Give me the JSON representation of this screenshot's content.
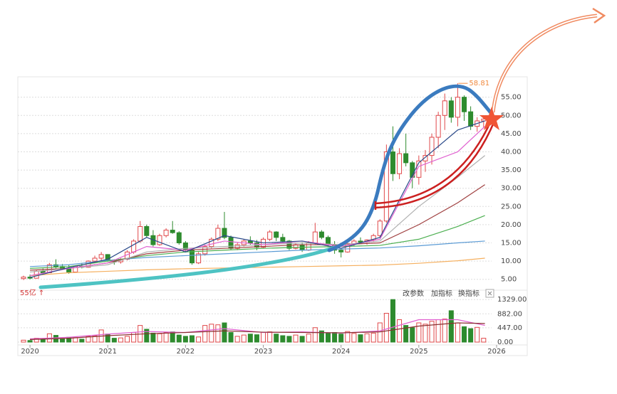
{
  "chart_data": [
    {
      "type": "candlestick",
      "categories": [
        null,
        "2020",
        null,
        null,
        null,
        null,
        null,
        null,
        null,
        null,
        null,
        null,
        null,
        "2021",
        null,
        null,
        null,
        null,
        null,
        null,
        null,
        null,
        null,
        null,
        null,
        "2022",
        null,
        null,
        null,
        null,
        null,
        null,
        null,
        null,
        null,
        null,
        null,
        "2023",
        null,
        null,
        null,
        null,
        null,
        null,
        null,
        null,
        null,
        null,
        null,
        "2024",
        null,
        null,
        null,
        null,
        null,
        null,
        null,
        null,
        null,
        null,
        null,
        "2025",
        null,
        null,
        null,
        null,
        null,
        null,
        null,
        null,
        null,
        null,
        null,
        "2026"
      ],
      "open": [
        5.2,
        5.6,
        5.3,
        7.2,
        6.8,
        9.0,
        8.5,
        8.0,
        7.0,
        8.6,
        8.3,
        10.0,
        10.8,
        11.8,
        10.2,
        9.8,
        10.5,
        12.5,
        15.5,
        19.5,
        17.0,
        14.5,
        17.0,
        18.5,
        17.8,
        15.0,
        13.0,
        9.5,
        12.0,
        14.0,
        16.0,
        19.0,
        16.5,
        13.5,
        14.5,
        15.5,
        15.0,
        13.8,
        16.0,
        18.0,
        16.5,
        15.5,
        13.5,
        14.5,
        13.0,
        15.0,
        18.0,
        16.5,
        14.5,
        13.0,
        12.5,
        14.8,
        15.5,
        15.2,
        15.8,
        17.0,
        21.0,
        40.0,
        34.0,
        39.5,
        37.0,
        33.0,
        37.5,
        39.0,
        44.0,
        50.0,
        54.0,
        49.5,
        55.0,
        51.0,
        47.0,
        48.5,
        null,
        null
      ],
      "high": [
        6.0,
        6.3,
        7.5,
        8.0,
        9.5,
        10.5,
        9.2,
        9.0,
        8.8,
        9.5,
        10.2,
        11.5,
        12.5,
        11.9,
        10.5,
        10.8,
        13.0,
        16.0,
        21.0,
        20.0,
        18.5,
        17.5,
        19.0,
        21.0,
        18.2,
        15.5,
        13.5,
        12.5,
        14.5,
        16.5,
        20.0,
        23.5,
        17.0,
        15.0,
        16.0,
        16.8,
        15.8,
        16.5,
        18.5,
        18.2,
        17.5,
        15.8,
        15.0,
        15.2,
        15.5,
        20.5,
        18.5,
        17.0,
        15.5,
        13.5,
        15.0,
        16.0,
        16.5,
        16.0,
        17.5,
        21.5,
        42.0,
        47.0,
        41.0,
        45.0,
        37.5,
        39.0,
        40.5,
        45.0,
        51.0,
        56.0,
        55.0,
        58.81,
        55.5,
        52.5,
        49.5,
        50.0,
        null,
        null
      ],
      "low": [
        4.8,
        5.0,
        5.2,
        6.5,
        6.7,
        8.0,
        7.8,
        6.5,
        6.8,
        8.0,
        8.2,
        9.5,
        10.0,
        9.8,
        9.0,
        9.3,
        10.2,
        12.0,
        15.0,
        16.5,
        14.0,
        14.2,
        16.5,
        17.5,
        14.5,
        12.5,
        9.0,
        9.2,
        11.5,
        13.5,
        15.5,
        16.0,
        13.0,
        13.0,
        14.0,
        14.5,
        13.0,
        13.5,
        15.5,
        15.5,
        15.0,
        13.0,
        13.2,
        12.5,
        12.8,
        14.5,
        16.0,
        14.0,
        12.0,
        11.0,
        12.3,
        14.0,
        14.8,
        14.5,
        15.2,
        16.5,
        20.5,
        32.0,
        32.5,
        36.0,
        30.0,
        31.0,
        34.5,
        36.5,
        41.0,
        46.0,
        48.0,
        47.0,
        48.5,
        46.0,
        45.5,
        46.5,
        null,
        null
      ],
      "close": [
        5.6,
        5.3,
        7.2,
        6.8,
        9.0,
        8.5,
        8.0,
        7.0,
        8.6,
        8.3,
        10.0,
        10.8,
        11.8,
        10.2,
        9.8,
        10.5,
        12.5,
        15.5,
        19.5,
        17.0,
        14.5,
        17.0,
        18.5,
        17.8,
        15.0,
        13.0,
        9.5,
        12.0,
        14.0,
        16.0,
        19.0,
        16.5,
        13.5,
        14.5,
        15.5,
        15.0,
        13.8,
        16.0,
        18.0,
        16.5,
        15.5,
        13.5,
        14.5,
        13.0,
        15.0,
        18.0,
        16.5,
        14.5,
        13.0,
        12.5,
        14.8,
        15.5,
        15.2,
        15.8,
        17.0,
        21.0,
        40.0,
        34.0,
        39.5,
        37.0,
        33.0,
        37.5,
        39.0,
        44.0,
        50.0,
        54.0,
        49.5,
        55.0,
        51.0,
        47.0,
        48.5,
        49.0,
        null,
        null
      ],
      "volume": [
        60,
        50,
        120,
        90,
        260,
        210,
        110,
        150,
        140,
        90,
        180,
        200,
        380,
        250,
        120,
        130,
        180,
        300,
        520,
        400,
        280,
        260,
        300,
        320,
        220,
        180,
        200,
        160,
        520,
        560,
        540,
        600,
        300,
        180,
        220,
        250,
        230,
        300,
        320,
        250,
        200,
        180,
        220,
        180,
        250,
        450,
        350,
        280,
        300,
        250,
        330,
        270,
        230,
        260,
        280,
        600,
        900,
        1329,
        700,
        520,
        450,
        600,
        560,
        650,
        700,
        720,
        980,
        600,
        480,
        420,
        460,
        120,
        null,
        null
      ],
      "ylim": [
        2.6,
        60.6
      ],
      "yticks": [
        {
          "value": 5,
          "label": "5.00"
        },
        {
          "value": 10,
          "label": "10.00"
        },
        {
          "value": 15,
          "label": "15.00"
        },
        {
          "value": 20,
          "label": "20.00"
        },
        {
          "value": 25,
          "label": "25.00"
        },
        {
          "value": 30,
          "label": "30.00"
        },
        {
          "value": 35,
          "label": "35.00"
        },
        {
          "value": 40,
          "label": "40.00"
        },
        {
          "value": 45,
          "label": "45.00"
        },
        {
          "value": 50,
          "label": "50.00"
        },
        {
          "value": 55,
          "label": "55.00"
        }
      ],
      "volume_ylim": [
        0,
        1400
      ],
      "volume_yticks": [
        {
          "value": 0,
          "label": "0.00"
        },
        {
          "value": 447,
          "label": "447.00"
        },
        {
          "value": 882,
          "label": "882.00"
        },
        {
          "value": 1329,
          "label": "1329.00"
        }
      ],
      "up_color": "#e0484a",
      "down_color": "#2e8b2e",
      "max_label": "58.81",
      "volume_unit": "55亿 ↑",
      "buttons": [
        "改参数",
        "加指标",
        "换指标"
      ]
    },
    {
      "type": "line",
      "xlim": [
        2019.917,
        2026.0
      ],
      "x": [
        2020,
        2020.5,
        2021,
        2021.5,
        2022,
        2022.5,
        2023,
        2023.5,
        2024,
        2024.5,
        2025,
        2025.5,
        2025.85
      ],
      "series": [
        {
          "color": "#f5b060",
          "values": [
            6.0,
            6.8,
            7.2,
            7.6,
            7.9,
            8.1,
            8.3,
            8.5,
            8.7,
            8.9,
            9.4,
            10.1,
            10.8
          ]
        },
        {
          "color": "#5b9bd5",
          "values": [
            8.5,
            9.0,
            10.2,
            11.0,
            11.5,
            12.0,
            12.5,
            13.0,
            13.3,
            13.6,
            14.2,
            15.0,
            15.5
          ]
        },
        {
          "color": "#4caf50",
          "values": [
            8.0,
            8.5,
            10.0,
            11.5,
            12.5,
            13.0,
            13.5,
            13.8,
            14.0,
            14.3,
            16.0,
            19.5,
            22.5
          ]
        },
        {
          "color": "#a04040",
          "values": [
            7.5,
            8.0,
            9.5,
            12.0,
            13.0,
            13.5,
            14.0,
            14.5,
            14.5,
            15.0,
            20.0,
            26.0,
            31.0
          ]
        },
        {
          "color": "#b0b0b0",
          "values": [
            7.0,
            8.0,
            9.0,
            12.5,
            13.5,
            14.0,
            14.5,
            15.0,
            14.5,
            15.5,
            25.0,
            33.0,
            39.0
          ]
        },
        {
          "color": "#e060d0",
          "values": [
            6.0,
            8.0,
            9.5,
            14.0,
            13.0,
            15.5,
            14.5,
            15.5,
            14.0,
            16.0,
            36.0,
            40.0,
            47.0
          ]
        },
        {
          "color": "#2b4a8a",
          "values": [
            5.5,
            8.2,
            10.5,
            16.5,
            12.5,
            17.0,
            15.0,
            15.5,
            13.5,
            16.5,
            37.0,
            46.0,
            48.5
          ]
        },
        {
          "color": "#e060d0",
          "axis": "volume",
          "values": [
            100,
            150,
            250,
            330,
            300,
            420,
            300,
            320,
            280,
            350,
            700,
            700,
            520
          ]
        },
        {
          "color": "#8a3030",
          "axis": "volume",
          "values": [
            80,
            120,
            200,
            260,
            300,
            350,
            310,
            300,
            290,
            320,
            500,
            600,
            580
          ]
        }
      ]
    }
  ]
}
